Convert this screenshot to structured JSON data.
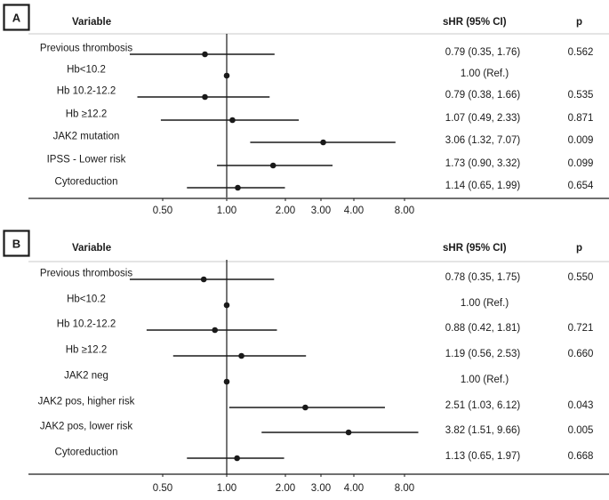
{
  "chart_data": [
    {
      "type": "forest",
      "panel": "A",
      "headers": {
        "variable": "Variable",
        "estimate": "sHR (95% CI)",
        "p": "p"
      },
      "reference_line": 1.0,
      "x_scale": "log",
      "x_ticks": [
        0.5,
        1.0,
        2.0,
        3.0,
        4.0,
        8.0
      ],
      "x_tick_labels": [
        "0.50",
        "1.00",
        "2.00",
        "3.00",
        "4.00",
        "8.00"
      ],
      "rows": [
        {
          "label": "Previous thrombosis",
          "hr": 0.79,
          "lo": 0.35,
          "hi": 1.76,
          "text": "0.79 (0.35, 1.76)",
          "p": "0.562"
        },
        {
          "label": "Hb<10.2",
          "hr": 1.0,
          "lo": null,
          "hi": null,
          "text": "1.00 (Ref.)",
          "p": ""
        },
        {
          "label": "Hb 10.2-12.2",
          "hr": 0.79,
          "lo": 0.38,
          "hi": 1.66,
          "text": "0.79 (0.38, 1.66)",
          "p": "0.535"
        },
        {
          "label": "Hb ≥12.2",
          "hr": 1.07,
          "lo": 0.49,
          "hi": 2.33,
          "text": "1.07 (0.49, 2.33)",
          "p": "0.871"
        },
        {
          "label": "JAK2 mutation",
          "hr": 3.06,
          "lo": 1.32,
          "hi": 7.07,
          "text": "3.06 (1.32, 7.07)",
          "p": "0.009"
        },
        {
          "label": "IPSS - Lower risk",
          "hr": 1.73,
          "lo": 0.9,
          "hi": 3.32,
          "text": "1.73 (0.90, 3.32)",
          "p": "0.099"
        },
        {
          "label": "Cytoreduction",
          "hr": 1.14,
          "lo": 0.65,
          "hi": 1.99,
          "text": "1.14 (0.65, 1.99)",
          "p": "0.654"
        }
      ]
    },
    {
      "type": "forest",
      "panel": "B",
      "headers": {
        "variable": "Variable",
        "estimate": "sHR (95% CI)",
        "p": "p"
      },
      "reference_line": 1.0,
      "x_scale": "log",
      "x_ticks": [
        0.5,
        1.0,
        2.0,
        3.0,
        4.0,
        8.0
      ],
      "x_tick_labels": [
        "0.50",
        "1.00",
        "2.00",
        "3.00",
        "4.00",
        "8.00"
      ],
      "rows": [
        {
          "label": "Previous thrombosis",
          "hr": 0.78,
          "lo": 0.35,
          "hi": 1.75,
          "text": "0.78 (0.35, 1.75)",
          "p": "0.550"
        },
        {
          "label": "Hb<10.2",
          "hr": 1.0,
          "lo": null,
          "hi": null,
          "text": "1.00 (Ref.)",
          "p": ""
        },
        {
          "label": "Hb 10.2-12.2",
          "hr": 0.88,
          "lo": 0.42,
          "hi": 1.81,
          "text": "0.88 (0.42, 1.81)",
          "p": "0.721"
        },
        {
          "label": "Hb ≥12.2",
          "hr": 1.19,
          "lo": 0.56,
          "hi": 2.53,
          "text": "1.19 (0.56, 2.53)",
          "p": "0.660"
        },
        {
          "label": "JAK2 neg",
          "hr": 1.0,
          "lo": null,
          "hi": null,
          "text": "1.00 (Ref.)",
          "p": ""
        },
        {
          "label": "JAK2 pos, higher risk",
          "hr": 2.51,
          "lo": 1.03,
          "hi": 6.12,
          "text": "2.51 (1.03, 6.12)",
          "p": "0.043"
        },
        {
          "label": "JAK2 pos, lower risk",
          "hr": 3.82,
          "lo": 1.51,
          "hi": 9.66,
          "text": "3.82 (1.51, 9.66)",
          "p": "0.005"
        },
        {
          "label": "Cytoreduction",
          "hr": 1.13,
          "lo": 0.65,
          "hi": 1.97,
          "text": "1.13 (0.65, 1.97)",
          "p": "0.668"
        }
      ]
    }
  ]
}
